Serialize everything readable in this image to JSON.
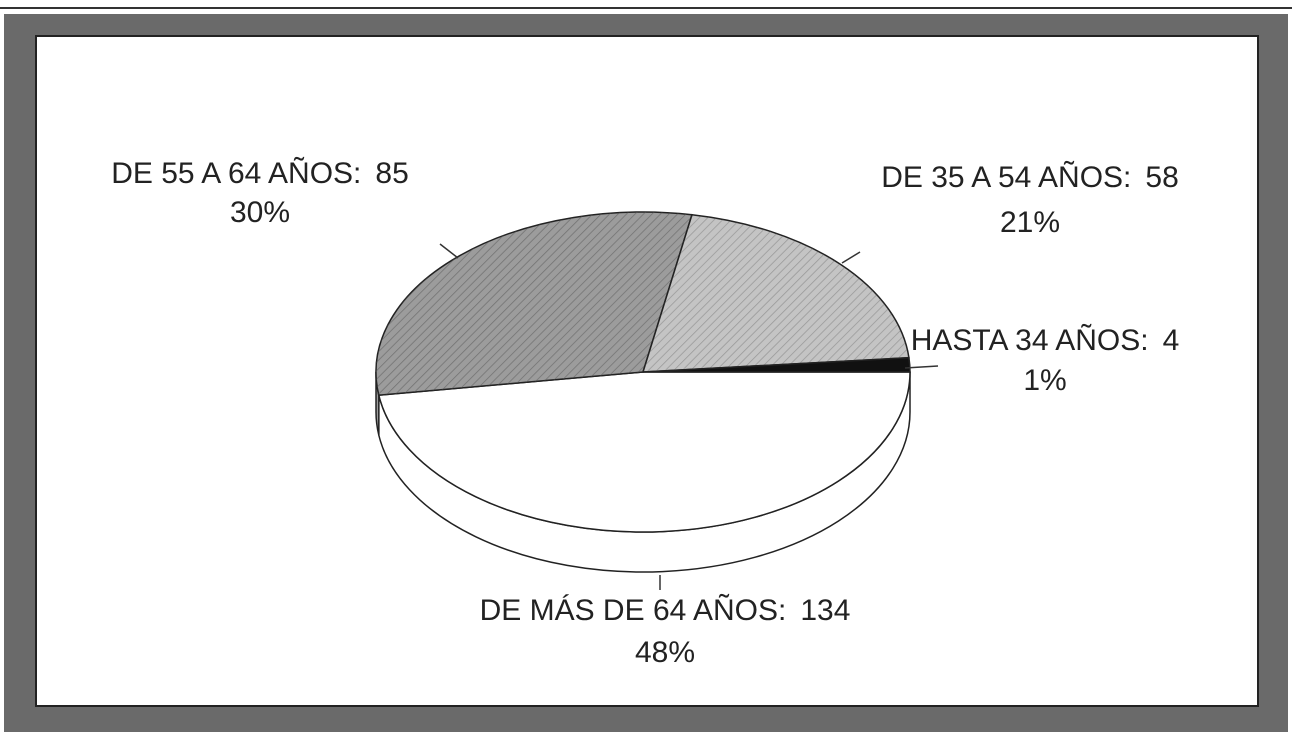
{
  "chart_data": {
    "type": "pie",
    "categories": [
      "DE MÁS DE 64 AÑOS:",
      "DE 55 A 64 AÑOS:",
      "DE 35 A 54 AÑOS:",
      "HASTA 34 AÑOS:"
    ],
    "values": [
      134,
      85,
      58,
      4
    ],
    "percent_labels": [
      "48%",
      "30%",
      "21%",
      "1%"
    ],
    "colors": [
      "#ffffff",
      "#9c9c9c",
      "#c4c4c4",
      "#111111"
    ]
  }
}
